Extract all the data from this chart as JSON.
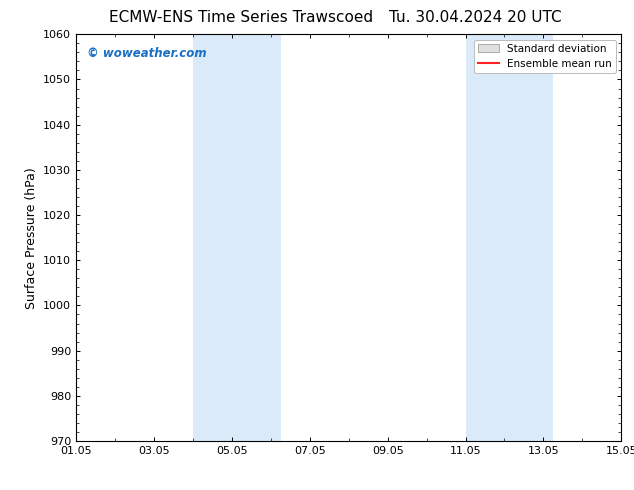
{
  "title_left": "ECMW-ENS Time Series Trawscoed",
  "title_right": "Tu. 30.04.2024 20 UTC",
  "ylabel": "Surface Pressure (hPa)",
  "ylim": [
    970,
    1060
  ],
  "yticks": [
    970,
    980,
    990,
    1000,
    1010,
    1020,
    1030,
    1040,
    1050,
    1060
  ],
  "xtick_labels": [
    "01.05",
    "03.05",
    "05.05",
    "07.05",
    "09.05",
    "11.05",
    "13.05",
    "15.05"
  ],
  "xtick_days_offset": [
    0,
    2,
    4,
    6,
    8,
    10,
    12,
    14
  ],
  "x_days_total": 14,
  "shaded_regions": [
    {
      "start_day": 3.0,
      "end_day": 5.25
    },
    {
      "start_day": 10.0,
      "end_day": 12.25
    }
  ],
  "shaded_color": "#daeaf8",
  "background_color": "#ffffff",
  "watermark_text": "© woweather.com",
  "watermark_color": "#1a6fc4",
  "legend_std_label": "Standard deviation",
  "legend_ens_label": "Ensemble mean run",
  "legend_std_facecolor": "#e0e0e0",
  "legend_std_edgecolor": "#aaaaaa",
  "legend_ens_color": "#ff2222",
  "title_fontsize": 11,
  "tick_fontsize": 8,
  "ylabel_fontsize": 9
}
